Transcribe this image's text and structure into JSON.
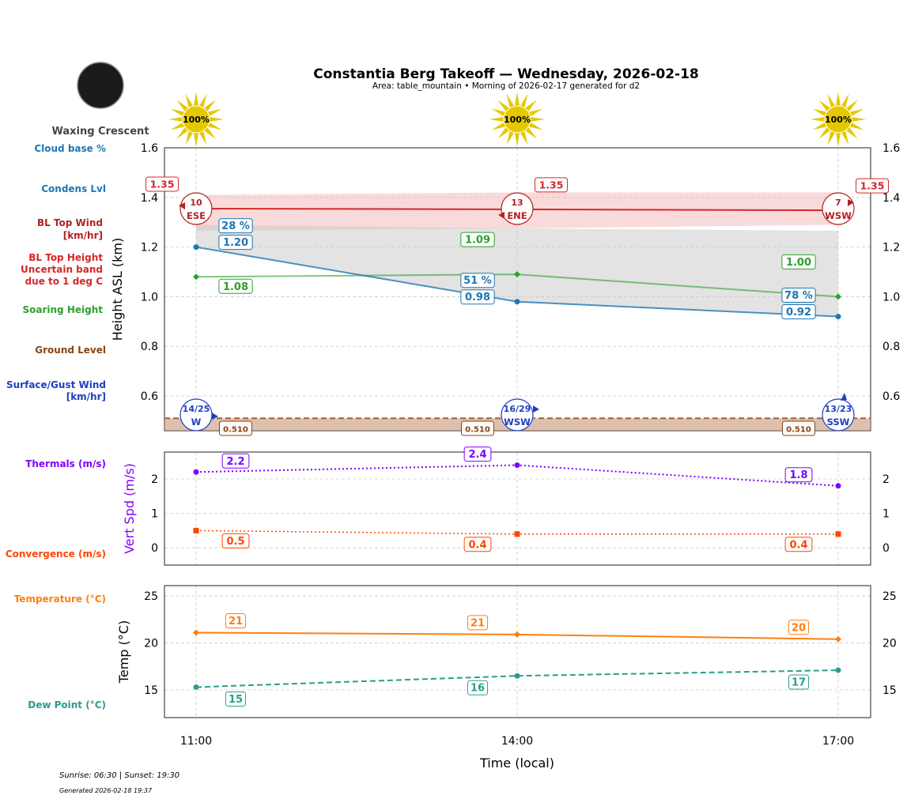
{
  "title": "Constantia Berg Takeoff — Wednesday, 2026-02-18",
  "subtitle": "Area: table_mountain • Morning of 2026-02-17 generated for d2",
  "moon_phase": "Waxing Crescent",
  "footer": {
    "sun": "Sunrise: 06:30 | Sunset: 19:30",
    "generated": "Generated 2026-02-18 19:37"
  },
  "colors": {
    "bl_top": "#d62728",
    "condens": "#1f77b4",
    "soaring": "#2ca02c",
    "ground": "#8b4513",
    "surface_wind": "#1f3fbf",
    "thermals": "#7f00ff",
    "convergence": "#ff4500",
    "temperature": "#ff7f0e",
    "dew_point": "#2a9d8f",
    "sun": "#e6c800"
  },
  "left_labels": {
    "cloud_base": "Cloud base %",
    "condens": "Condens Lvl",
    "bl_wind": [
      "BL Top Wind",
      "[km/hr]"
    ],
    "bl_height": [
      "BL Top Height",
      "Uncertain band",
      "due to 1 deg C"
    ],
    "soaring": "Soaring Height",
    "ground": "Ground Level",
    "surface_wind": [
      "Surface/Gust Wind",
      "[km/hr]"
    ],
    "thermals": "Thermals (m/s)",
    "convergence": "Convergence (m/s)",
    "temperature": "Temperature (°C)",
    "dew_point": "Dew Point (°C)"
  },
  "chart_data": [
    {
      "type": "line",
      "ylabel": "Height ASL (km)",
      "ylim": [
        0.46,
        1.6
      ],
      "yticks": [
        0.6,
        0.8,
        1.0,
        1.2,
        1.4,
        1.6
      ],
      "grid": true,
      "x": [
        "11:00",
        "14:00",
        "17:00"
      ],
      "sun_percent": [
        "100%",
        "100%",
        "100%"
      ],
      "bl_top": {
        "values": [
          1.355,
          1.352,
          1.348
        ],
        "labels": [
          "1.35",
          "1.35",
          "1.35"
        ],
        "band_upper": [
          1.41,
          1.42,
          1.42
        ],
        "band_lower": [
          1.29,
          1.275,
          1.266
        ]
      },
      "condens": {
        "values": [
          1.2,
          0.98,
          0.92
        ],
        "labels": [
          "1.20",
          "0.98",
          "0.92"
        ]
      },
      "cloud_base_pct": [
        "28 %",
        "51 %",
        "78 %"
      ],
      "soaring": {
        "values": [
          1.08,
          1.09,
          1.0
        ],
        "labels": [
          "1.08",
          "1.09",
          "1.00"
        ]
      },
      "ground": {
        "values": [
          0.51,
          0.51,
          0.51
        ],
        "labels": [
          "0.510",
          "0.510",
          "0.510"
        ]
      },
      "bl_wind": [
        {
          "speed": "10",
          "dir": "ESE"
        },
        {
          "speed": "13",
          "dir": "ENE"
        },
        {
          "speed": "7",
          "dir": "WSW"
        }
      ],
      "surface_wind": [
        {
          "speed": "14/25",
          "dir": "W"
        },
        {
          "speed": "16/29",
          "dir": "WSW"
        },
        {
          "speed": "13/23",
          "dir": "SSW"
        }
      ]
    },
    {
      "type": "line",
      "ylabel": "Vert Spd (m/s)",
      "ylim": [
        -0.5,
        2.78
      ],
      "yticks": [
        0,
        1,
        2
      ],
      "grid": true,
      "x": [
        "11:00",
        "14:00",
        "17:00"
      ],
      "series": [
        {
          "key": "thermals",
          "values": [
            2.2,
            2.4,
            1.8
          ],
          "labels": [
            "2.2",
            "2.4",
            "1.8"
          ]
        },
        {
          "key": "convergence",
          "values": [
            0.5,
            0.4,
            0.4
          ],
          "labels": [
            "0.5",
            "0.4",
            "0.4"
          ]
        }
      ]
    },
    {
      "type": "line",
      "ylabel": "Temp (°C)",
      "xlabel": "Time (local)",
      "ylim": [
        12.06,
        26.1
      ],
      "yticks": [
        15,
        20,
        25
      ],
      "grid": true,
      "x": [
        "11:00",
        "14:00",
        "17:00"
      ],
      "series": [
        {
          "key": "temperature",
          "values": [
            21.1,
            20.9,
            20.4
          ],
          "labels": [
            "21",
            "21",
            "20"
          ]
        },
        {
          "key": "dew_point",
          "values": [
            15.3,
            16.5,
            17.1
          ],
          "labels": [
            "15",
            "16",
            "17"
          ]
        }
      ]
    }
  ]
}
